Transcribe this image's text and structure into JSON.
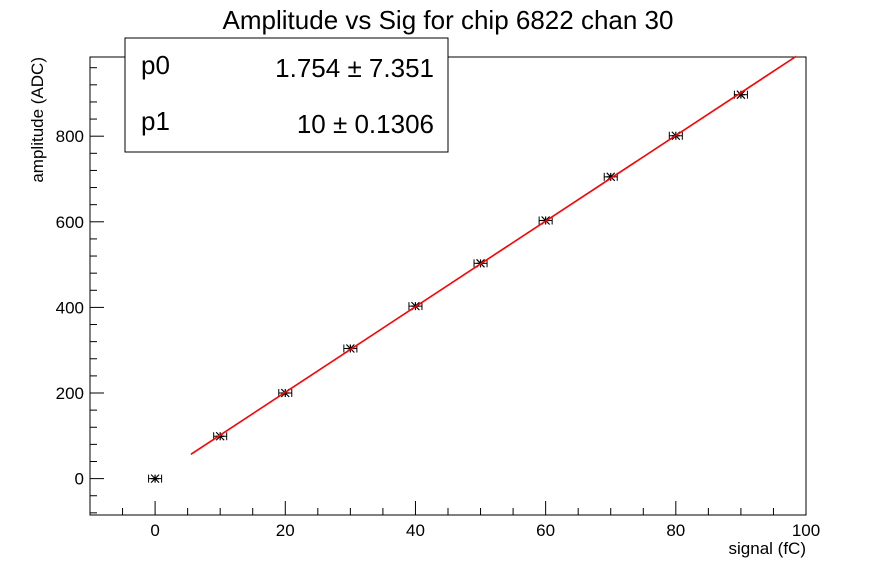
{
  "chart_data": {
    "type": "scatter",
    "title": "Amplitude vs Sig for chip 6822 chan 30",
    "xlabel": "signal (fC)",
    "ylabel": "amplitude (ADC)",
    "xlim": [
      -10,
      100
    ],
    "ylim": [
      -85,
      985
    ],
    "x_ticks": [
      0,
      20,
      40,
      60,
      80,
      100
    ],
    "y_ticks": [
      0,
      200,
      400,
      600,
      800
    ],
    "grid": false,
    "points": {
      "x": [
        0,
        10,
        20,
        30,
        40,
        50,
        60,
        70,
        80,
        90
      ],
      "y": [
        0,
        99,
        200,
        304,
        403,
        503,
        603,
        705,
        801,
        897
      ],
      "x_err": 1,
      "y_err": 4
    },
    "fit": {
      "x_range": [
        5.5,
        98.5
      ],
      "p0": 1.754,
      "p1": 10,
      "color": "#ff0000"
    },
    "stats_box": {
      "position": "top-left",
      "rows": [
        {
          "name": "p0",
          "value": "1.754 ± 7.351"
        },
        {
          "name": "p1",
          "value": "10 ± 0.1306"
        }
      ]
    }
  }
}
